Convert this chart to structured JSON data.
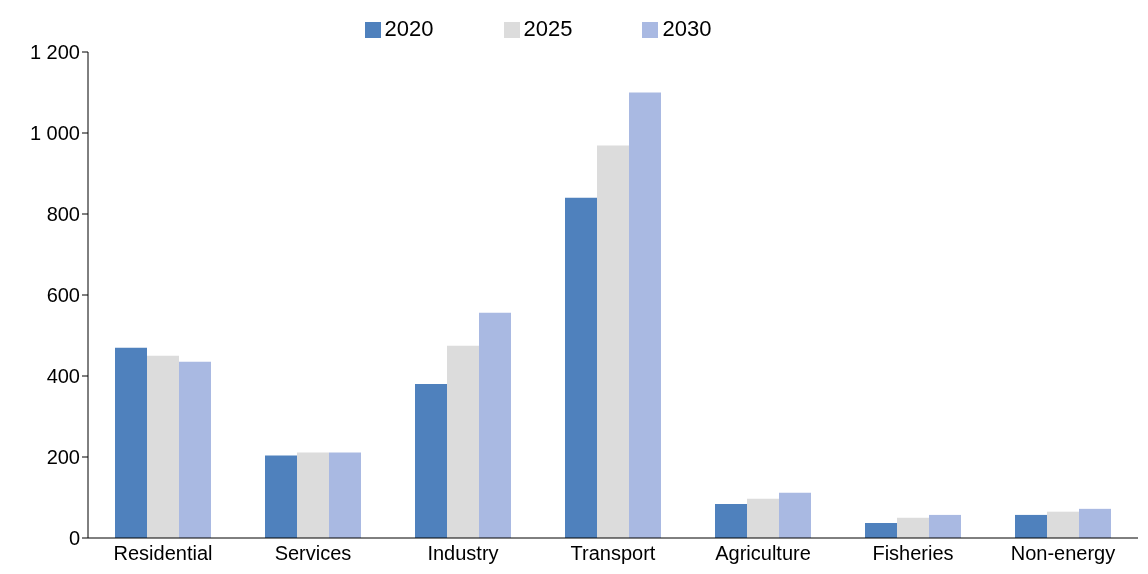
{
  "chart_data": {
    "type": "bar",
    "categories": [
      "Residential",
      "Services",
      "Industry",
      "Transport",
      "Agriculture",
      "Fisheries",
      "Non-energy"
    ],
    "series": [
      {
        "name": "2020",
        "color": "#4f81bd",
        "values": [
          470,
          204,
          380,
          840,
          84,
          37,
          57
        ]
      },
      {
        "name": "2025",
        "color": "#dcdcdc",
        "values": [
          450,
          211,
          475,
          969,
          97,
          50,
          65
        ]
      },
      {
        "name": "2030",
        "color": "#a9b9e2",
        "values": [
          435,
          211,
          556,
          1100,
          112,
          57,
          72
        ]
      }
    ],
    "ylim": [
      0,
      1200
    ],
    "yticks": [
      0,
      200,
      400,
      600,
      800,
      {
        "value": 1000,
        "label": "1 000"
      },
      {
        "value": 1200,
        "label": "1 200"
      }
    ],
    "grid": false,
    "legend": "top"
  }
}
